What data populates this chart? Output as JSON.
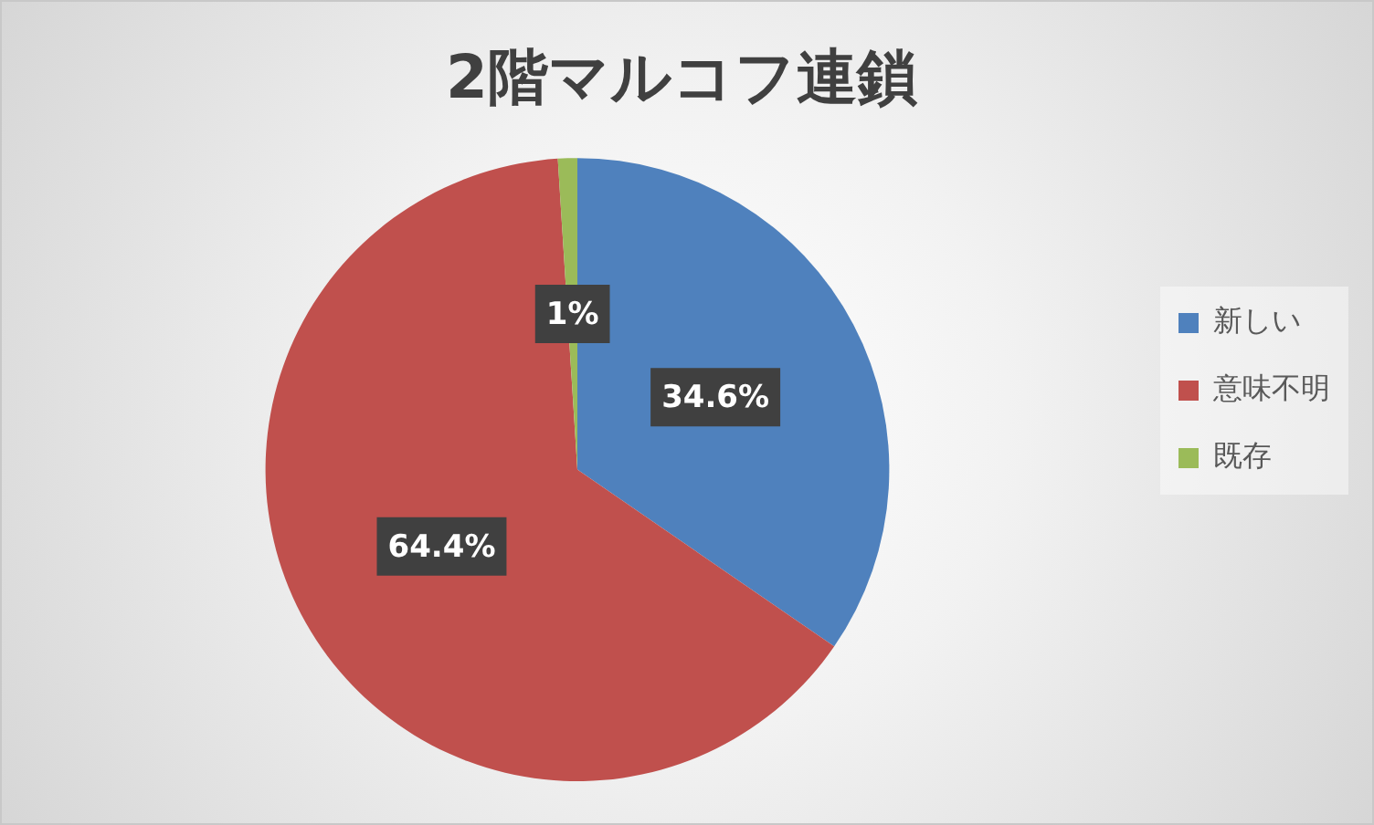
{
  "chart_data": {
    "type": "pie",
    "title": "2階マルコフ連鎖",
    "categories": [
      "新しい",
      "意味不明",
      "既存"
    ],
    "values": [
      34.6,
      64.4,
      1
    ],
    "colors": [
      "#4f81bd",
      "#c0504d",
      "#9bbb59"
    ],
    "value_labels": [
      "34.6%",
      "64.4%",
      "1%"
    ],
    "legend": "right"
  }
}
